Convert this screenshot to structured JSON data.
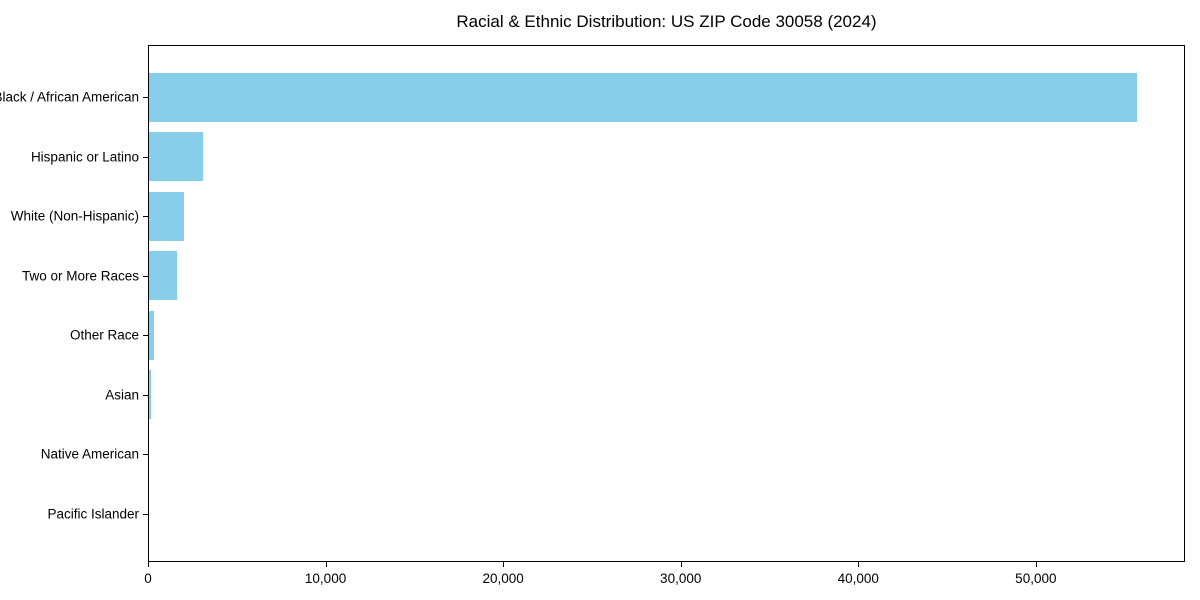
{
  "chart_data": {
    "type": "bar",
    "orientation": "horizontal",
    "title": "Racial & Ethnic Distribution: US ZIP Code 30058 (2024)",
    "categories": [
      "Black / African American",
      "Hispanic or Latino",
      "White (Non-Hispanic)",
      "Two or More Races",
      "Other Race",
      "Asian",
      "Native American",
      "Pacific Islander"
    ],
    "values": [
      55700,
      3100,
      2000,
      1630,
      350,
      170,
      50,
      20
    ],
    "xlabel": "",
    "ylabel": "",
    "xlim": [
      0,
      58400
    ],
    "x_ticks": [
      0,
      10000,
      20000,
      30000,
      40000,
      50000
    ],
    "x_tick_labels": [
      "0",
      "10,000",
      "20,000",
      "30,000",
      "40,000",
      "50,000"
    ],
    "bar_color": "#87CEEB",
    "text_color": "#000000",
    "axis_color": "#000000",
    "background_color": "#ffffff",
    "grid": false,
    "legend": "none"
  }
}
